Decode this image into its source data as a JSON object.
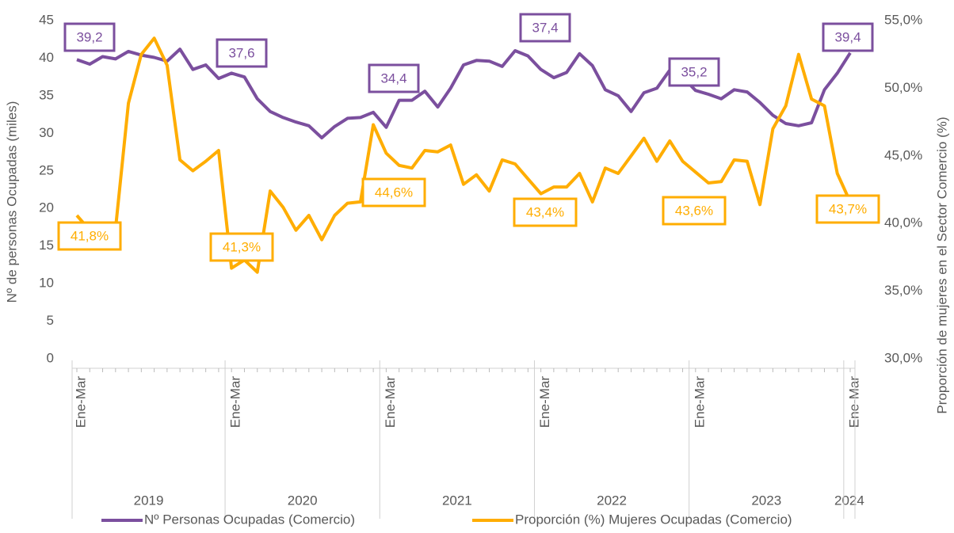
{
  "chart_data": {
    "type": "line",
    "categories": [
      "Ene-Mar",
      null,
      null,
      null,
      null,
      null,
      null,
      null,
      null,
      null,
      null,
      null,
      "Ene-Mar",
      null,
      null,
      null,
      null,
      null,
      null,
      null,
      null,
      null,
      null,
      null,
      "Ene-Mar",
      null,
      null,
      null,
      null,
      null,
      null,
      null,
      null,
      null,
      null,
      null,
      "Ene-Mar",
      null,
      null,
      null,
      null,
      null,
      null,
      null,
      null,
      null,
      null,
      null,
      "Ene-Mar",
      null,
      null,
      null,
      null,
      null,
      null,
      null,
      null,
      null,
      null,
      null,
      "Ene-Mar"
    ],
    "groups": [
      "2019",
      "2020",
      "2021",
      "2022",
      "2023",
      "2024"
    ],
    "ylabel": "Nº de personas Ocupadas (miles)",
    "y2label": "Proporción de  mujeres en el Sector Comercio (%)",
    "ylim": [
      0,
      45
    ],
    "yticks": [
      0,
      5,
      10,
      15,
      20,
      25,
      30,
      35,
      40,
      45
    ],
    "y2lim": [
      30,
      55
    ],
    "y2ticks": [
      {
        "value": 30,
        "label": "30,0%"
      },
      {
        "value": 35,
        "label": "35,0%"
      },
      {
        "value": 40,
        "label": "40,0%"
      },
      {
        "value": 45,
        "label": "45,0%"
      },
      {
        "value": 50,
        "label": "50,0%"
      },
      {
        "value": 55,
        "label": "55,0%"
      }
    ],
    "series": [
      {
        "name": "Nº Personas Ocupadas (Comercio)",
        "color": "#7b4f9e",
        "values": [
          39.8,
          39.2,
          40.2,
          39.9,
          40.9,
          40.4,
          40.1,
          39.6,
          41.2,
          38.5,
          39.1,
          37.3,
          38.0,
          37.5,
          34.6,
          32.9,
          32.1,
          31.5,
          31.0,
          29.4,
          30.9,
          32.0,
          32.1,
          32.8,
          30.8,
          34.4,
          34.4,
          35.6,
          33.5,
          36.0,
          39.1,
          39.7,
          39.6,
          38.9,
          41.0,
          40.3,
          38.5,
          37.4,
          38.1,
          40.6,
          39.0,
          35.8,
          35.0,
          32.9,
          35.4,
          36.0,
          38.4,
          37.5,
          35.7,
          35.2,
          34.6,
          35.8,
          35.5,
          34.1,
          32.4,
          31.3,
          31.0,
          31.4,
          35.8,
          38.0,
          40.7
        ]
      },
      {
        "name": "Proporción (%) Mujeres Ocupadas (Comercio)",
        "color": "#ffad00",
        "axis": "y2",
        "values": [
          40.6,
          39.5,
          39.8,
          39.6,
          48.9,
          52.5,
          53.7,
          51.7,
          44.7,
          43.9,
          44.6,
          45.4,
          36.7,
          37.3,
          36.4,
          42.4,
          41.2,
          39.5,
          40.6,
          38.8,
          40.6,
          41.5,
          41.6,
          47.3,
          45.2,
          44.3,
          44.1,
          45.4,
          45.3,
          45.8,
          42.9,
          43.6,
          42.4,
          44.7,
          44.4,
          43.3,
          42.2,
          42.7,
          42.7,
          43.7,
          41.6,
          44.1,
          43.7,
          45.0,
          46.3,
          44.6,
          46.1,
          44.6,
          43.8,
          43.0,
          43.1,
          44.7,
          44.6,
          41.4,
          47.0,
          48.7,
          52.5,
          49.2,
          48.7,
          43.7,
          41.6
        ]
      }
    ],
    "annotations": [
      "39,2",
      "37,6",
      "34,4",
      "37,4",
      "35,2",
      "39,4",
      "41,8%",
      "41,3%",
      "44,6%",
      "43,4%",
      "43,6%",
      "43,7%"
    ],
    "legend": "bottom"
  }
}
